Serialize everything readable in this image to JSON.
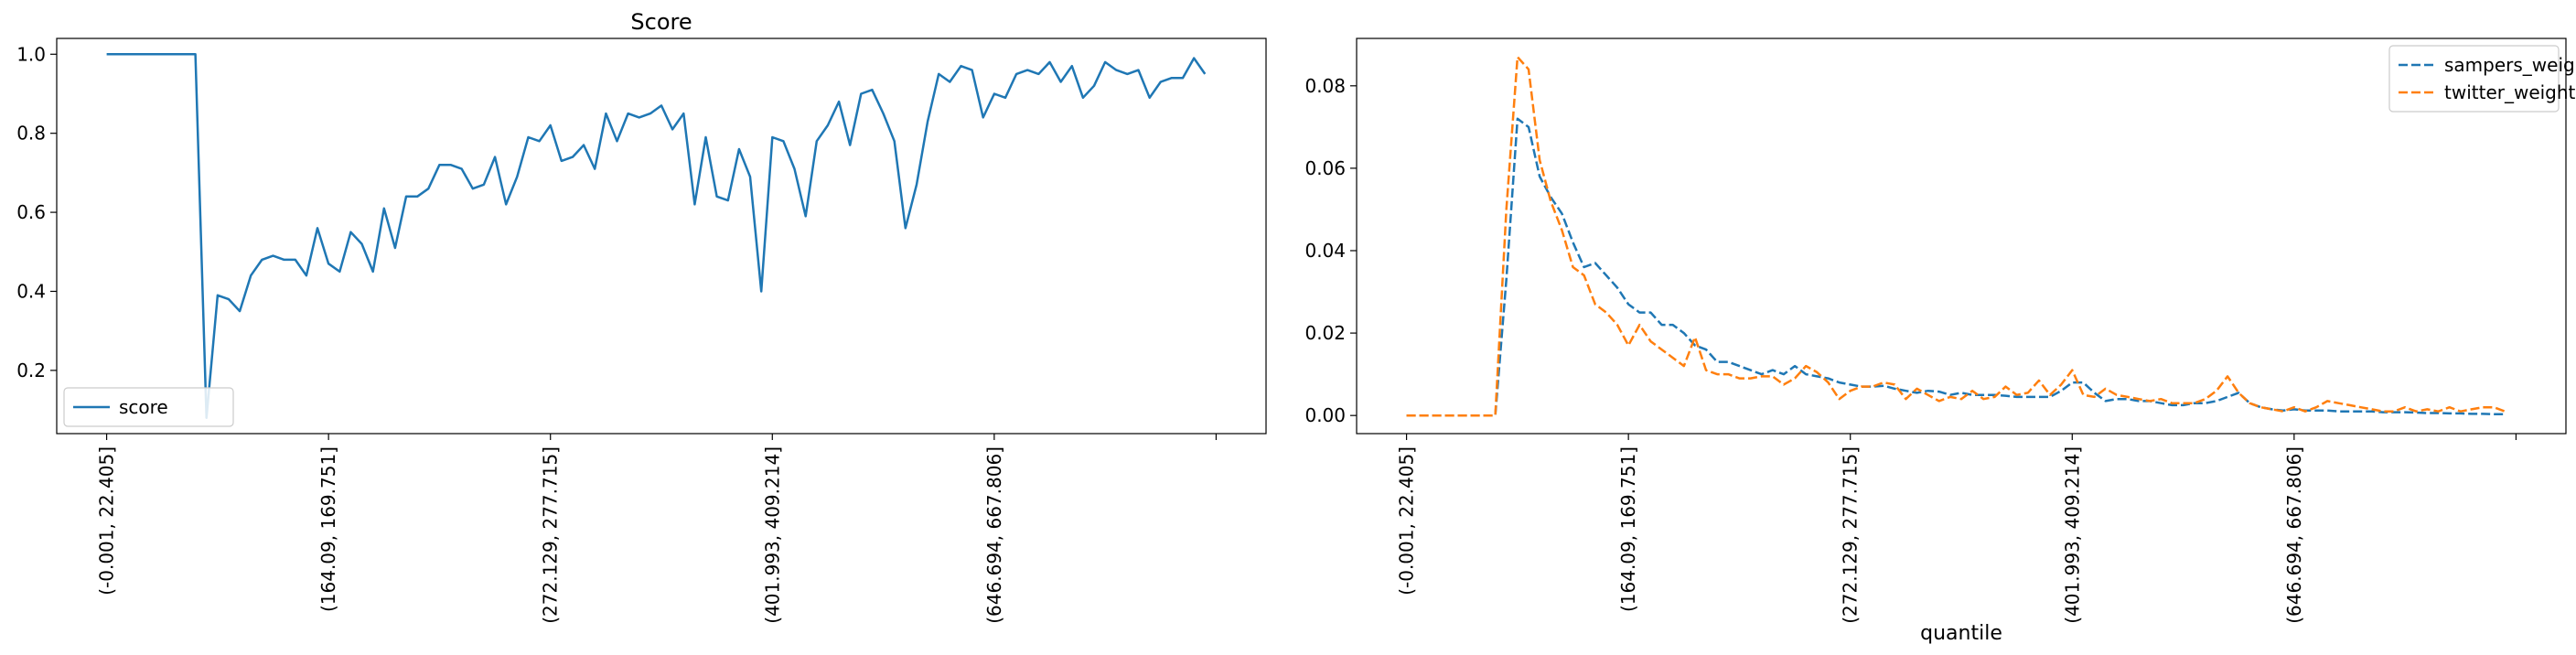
{
  "chart_data": [
    {
      "type": "line",
      "title": "Score",
      "xlabel": "",
      "ylabel": "",
      "ylim": [
        0.04,
        1.04
      ],
      "xlim": [
        -4.5,
        104.5
      ],
      "n_points": 100,
      "yticks": [
        "0.2",
        "0.4",
        "0.6",
        "0.8",
        "1.0"
      ],
      "ytick_values": [
        0.2,
        0.4,
        0.6,
        0.8,
        1.0
      ],
      "xticks": [
        "(-0.001, 22.405]",
        "(164.09, 169.751]",
        "(272.129, 277.715]",
        "(401.993, 409.214]",
        "(646.694, 667.806]",
        ""
      ],
      "xtick_positions": [
        0,
        20,
        40,
        60,
        80,
        100
      ],
      "grid": false,
      "legend": "lower-left",
      "series": [
        {
          "name": "score",
          "color": "#1f77b4",
          "style": "solid",
          "values": [
            1.0,
            1.0,
            1.0,
            1.0,
            1.0,
            1.0,
            1.0,
            1.0,
            1.0,
            0.08,
            0.39,
            0.38,
            0.35,
            0.44,
            0.48,
            0.49,
            0.48,
            0.48,
            0.44,
            0.56,
            0.47,
            0.45,
            0.55,
            0.52,
            0.45,
            0.61,
            0.51,
            0.64,
            0.64,
            0.66,
            0.72,
            0.72,
            0.71,
            0.66,
            0.67,
            0.74,
            0.62,
            0.69,
            0.79,
            0.78,
            0.82,
            0.73,
            0.74,
            0.77,
            0.71,
            0.85,
            0.78,
            0.85,
            0.84,
            0.85,
            0.87,
            0.81,
            0.85,
            0.62,
            0.79,
            0.64,
            0.63,
            0.76,
            0.69,
            0.4,
            0.79,
            0.78,
            0.71,
            0.59,
            0.78,
            0.82,
            0.88,
            0.77,
            0.9,
            0.91,
            0.85,
            0.78,
            0.56,
            0.67,
            0.83,
            0.95,
            0.93,
            0.97,
            0.96,
            0.84,
            0.9,
            0.89,
            0.95,
            0.96,
            0.95,
            0.98,
            0.93,
            0.97,
            0.89,
            0.92,
            0.98,
            0.96,
            0.95,
            0.96,
            0.89,
            0.93,
            0.94,
            0.94,
            0.99,
            0.95
          ]
        }
      ]
    },
    {
      "type": "line",
      "title": "",
      "xlabel": "quantile",
      "ylabel": "",
      "ylim": [
        -0.0044,
        0.0915
      ],
      "xlim": [
        -4.5,
        104.5
      ],
      "n_points": 100,
      "yticks": [
        "0.00",
        "0.02",
        "0.04",
        "0.06",
        "0.08"
      ],
      "ytick_values": [
        0.0,
        0.02,
        0.04,
        0.06,
        0.08
      ],
      "xticks": [
        "(-0.001, 22.405]",
        "(164.09, 169.751]",
        "(272.129, 277.715]",
        "(401.993, 409.214]",
        "(646.694, 667.806]",
        ""
      ],
      "xtick_positions": [
        0,
        20,
        40,
        60,
        80,
        100
      ],
      "grid": false,
      "legend": "top-right",
      "series": [
        {
          "name": "sampers_weight",
          "color": "#1f77b4",
          "style": "dashed",
          "values": [
            0,
            0,
            0,
            0,
            0,
            0,
            0,
            0,
            0,
            0.033,
            0.072,
            0.07,
            0.058,
            0.053,
            0.049,
            0.042,
            0.036,
            0.037,
            0.034,
            0.031,
            0.027,
            0.025,
            0.025,
            0.022,
            0.022,
            0.02,
            0.017,
            0.016,
            0.013,
            0.013,
            0.012,
            0.011,
            0.01,
            0.011,
            0.01,
            0.012,
            0.01,
            0.0095,
            0.009,
            0.008,
            0.0075,
            0.007,
            0.007,
            0.0072,
            0.0065,
            0.006,
            0.0055,
            0.006,
            0.0058,
            0.005,
            0.0055,
            0.005,
            0.005,
            0.005,
            0.0048,
            0.0045,
            0.0045,
            0.0045,
            0.0045,
            0.006,
            0.008,
            0.008,
            0.0055,
            0.0035,
            0.004,
            0.004,
            0.0035,
            0.0035,
            0.003,
            0.0025,
            0.0025,
            0.003,
            0.003,
            0.0035,
            0.0045,
            0.0055,
            0.003,
            0.002,
            0.0015,
            0.0012,
            0.0015,
            0.0012,
            0.0012,
            0.0012,
            0.001,
            0.001,
            0.001,
            0.001,
            0.0008,
            0.0008,
            0.0008,
            0.0007,
            0.0006,
            0.0006,
            0.0005,
            0.0005,
            0.0004,
            0.0004,
            0.0003,
            0.0003
          ]
        },
        {
          "name": "twitter_weight",
          "color": "#ff7f0e",
          "style": "dashed",
          "values": [
            0,
            0,
            0,
            0,
            0,
            0,
            0,
            0,
            0,
            0.05,
            0.087,
            0.084,
            0.062,
            0.052,
            0.045,
            0.036,
            0.034,
            0.027,
            0.025,
            0.022,
            0.017,
            0.022,
            0.018,
            0.016,
            0.014,
            0.012,
            0.019,
            0.011,
            0.01,
            0.01,
            0.009,
            0.009,
            0.0095,
            0.0095,
            0.0075,
            0.009,
            0.012,
            0.0105,
            0.008,
            0.004,
            0.006,
            0.007,
            0.007,
            0.008,
            0.0075,
            0.004,
            0.0065,
            0.005,
            0.0035,
            0.0045,
            0.004,
            0.006,
            0.004,
            0.0045,
            0.007,
            0.005,
            0.0055,
            0.0085,
            0.005,
            0.0075,
            0.011,
            0.005,
            0.0045,
            0.0065,
            0.005,
            0.0045,
            0.004,
            0.0035,
            0.004,
            0.003,
            0.003,
            0.003,
            0.004,
            0.006,
            0.0095,
            0.0055,
            0.003,
            0.002,
            0.0015,
            0.001,
            0.002,
            0.001,
            0.002,
            0.0035,
            0.003,
            0.0025,
            0.002,
            0.0015,
            0.001,
            0.001,
            0.002,
            0.001,
            0.0015,
            0.001,
            0.002,
            0.001,
            0.0015,
            0.002,
            0.002,
            0.001
          ]
        }
      ]
    }
  ]
}
